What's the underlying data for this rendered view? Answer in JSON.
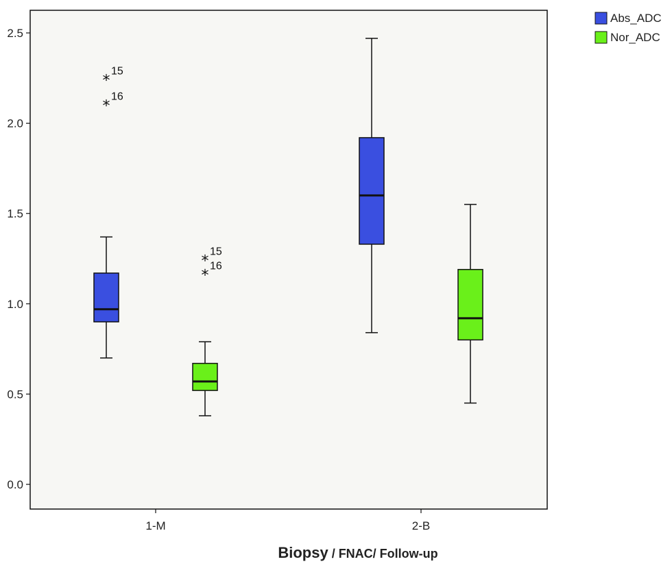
{
  "chart_data": {
    "type": "boxplot",
    "title": "",
    "xlabel_main": "Biopsy",
    "xlabel_sub": " / FNAC/ Follow-up",
    "ylabel": "",
    "ylim": [
      -0.13,
      2.63
    ],
    "yticks": [
      0.0,
      0.5,
      1.0,
      1.5,
      2.0,
      2.5
    ],
    "ytick_labels": [
      "0.0",
      "0.5",
      "1.0",
      "1.5",
      "2.0",
      "2.5"
    ],
    "categories": [
      "1-M",
      "2-B"
    ],
    "legend_position": "top-right-outside",
    "series": [
      {
        "name": "Abs_ADC",
        "color": "#3a4fe0",
        "boxes": [
          {
            "category": "1-M",
            "min": 0.7,
            "q1": 0.9,
            "median": 0.97,
            "q3": 1.17,
            "max": 1.37,
            "outliers": [
              {
                "value": 2.24,
                "label": "15"
              },
              {
                "value": 2.1,
                "label": "16"
              }
            ]
          },
          {
            "category": "2-B",
            "min": 0.84,
            "q1": 1.33,
            "median": 1.6,
            "q3": 1.92,
            "max": 2.47,
            "outliers": []
          }
        ]
      },
      {
        "name": "Nor_ADC",
        "color": "#6af01a",
        "boxes": [
          {
            "category": "1-M",
            "min": 0.38,
            "q1": 0.52,
            "median": 0.57,
            "q3": 0.67,
            "max": 0.79,
            "outliers": [
              {
                "value": 1.24,
                "label": "15"
              },
              {
                "value": 1.16,
                "label": "16"
              }
            ]
          },
          {
            "category": "2-B",
            "min": 0.45,
            "q1": 0.8,
            "median": 0.92,
            "q3": 1.19,
            "max": 1.55,
            "outliers": []
          }
        ]
      }
    ]
  }
}
